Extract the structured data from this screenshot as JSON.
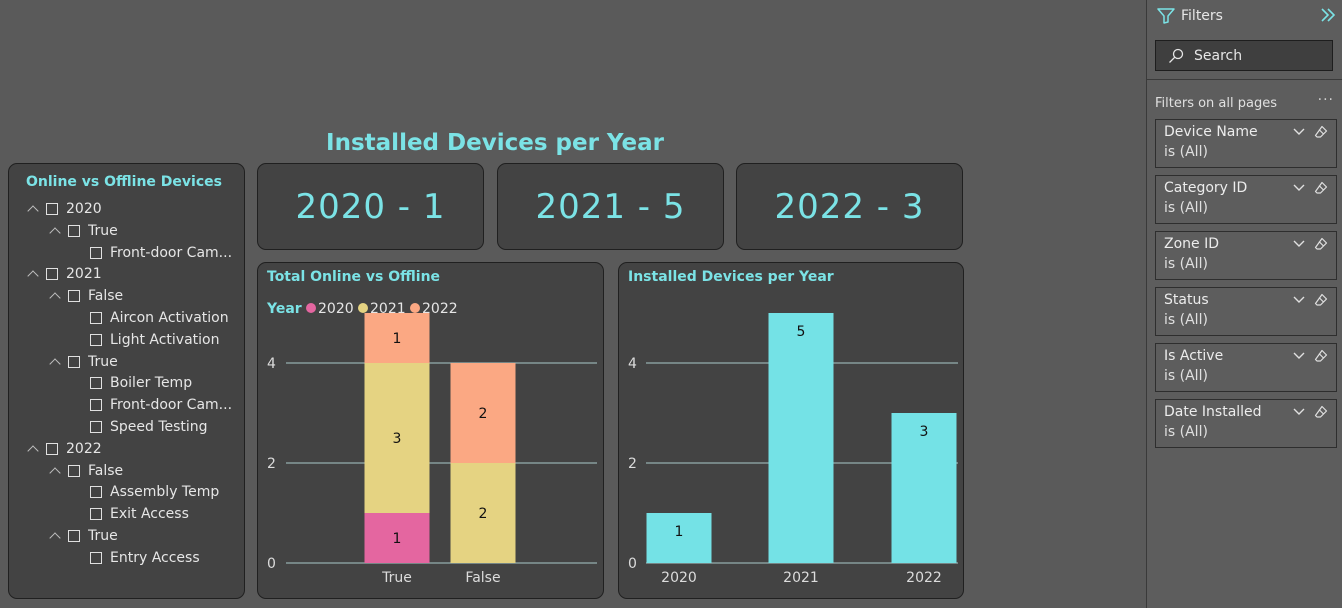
{
  "page": {
    "title": "Installed Devices per Year"
  },
  "slicer": {
    "title": "Online vs Offline Devices",
    "rows": [
      {
        "level": 0,
        "label": "2020",
        "chevron": true
      },
      {
        "level": 1,
        "label": "True",
        "chevron": true
      },
      {
        "level": 2,
        "label": "Front-door Cam...",
        "chevron": false
      },
      {
        "level": 0,
        "label": "2021",
        "chevron": true
      },
      {
        "level": 1,
        "label": "False",
        "chevron": true
      },
      {
        "level": 2,
        "label": "Aircon Activation",
        "chevron": false
      },
      {
        "level": 2,
        "label": "Light Activation",
        "chevron": false
      },
      {
        "level": 1,
        "label": "True",
        "chevron": true
      },
      {
        "level": 2,
        "label": "Boiler Temp",
        "chevron": false
      },
      {
        "level": 2,
        "label": "Front-door Cam...",
        "chevron": false
      },
      {
        "level": 2,
        "label": "Speed Testing",
        "chevron": false
      },
      {
        "level": 0,
        "label": "2022",
        "chevron": true
      },
      {
        "level": 1,
        "label": "False",
        "chevron": true
      },
      {
        "level": 2,
        "label": "Assembly Temp",
        "chevron": false
      },
      {
        "level": 2,
        "label": "Exit Access",
        "chevron": false
      },
      {
        "level": 1,
        "label": "True",
        "chevron": true
      },
      {
        "level": 2,
        "label": "Entry Access",
        "chevron": false
      }
    ]
  },
  "cards": [
    {
      "value": "2020 - 1"
    },
    {
      "value": "2021 - 5"
    },
    {
      "value": "2022 - 3"
    }
  ],
  "colors": {
    "accent": "#7be3e6",
    "y2020": "#e466a0",
    "y2021": "#e5d382",
    "y2022": "#fba883",
    "bar": "#74e2e6"
  },
  "chart_data": [
    {
      "type": "bar",
      "stacked": true,
      "title": "Total Online vs Offline",
      "legend_title": "Year",
      "legend_position": "top-left",
      "categories": [
        "True",
        "False"
      ],
      "series": [
        {
          "name": "2020",
          "values": [
            1,
            0
          ]
        },
        {
          "name": "2021",
          "values": [
            3,
            2
          ]
        },
        {
          "name": "2022",
          "values": [
            1,
            2
          ]
        }
      ],
      "yticks": [
        0,
        2,
        4
      ],
      "ylim": [
        0,
        5.2
      ],
      "grid": true
    },
    {
      "type": "bar",
      "title": "Installed Devices per Year",
      "categories": [
        "2020",
        "2021",
        "2022"
      ],
      "values": [
        1,
        5,
        3
      ],
      "yticks": [
        0,
        2,
        4
      ],
      "ylim": [
        0,
        5.2
      ],
      "grid": true
    }
  ],
  "filters": {
    "header": "Filters",
    "search_placeholder": "Search",
    "section": "Filters on all pages",
    "more": "···",
    "items": [
      {
        "name": "Device Name",
        "value": "is (All)"
      },
      {
        "name": "Category ID",
        "value": "is (All)"
      },
      {
        "name": "Zone ID",
        "value": "is (All)"
      },
      {
        "name": "Status",
        "value": "is (All)"
      },
      {
        "name": "Is Active",
        "value": "is (All)"
      },
      {
        "name": "Date Installed",
        "value": "is (All)"
      }
    ]
  }
}
